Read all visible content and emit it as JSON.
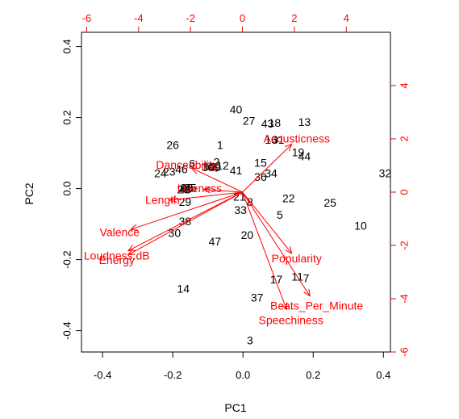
{
  "chart_data": {
    "type": "biplot",
    "xlabel": "PC1",
    "ylabel": "PC2",
    "primary_axes": {
      "x": {
        "range": [
          -0.46,
          0.42
        ],
        "ticks": [
          -0.4,
          -0.2,
          0.0,
          0.2,
          0.4
        ],
        "tick_labels": [
          "-0.4",
          "-0.2",
          "0.0",
          "0.2",
          "0.4"
        ]
      },
      "y": {
        "range": [
          -0.46,
          0.44
        ],
        "ticks": [
          -0.4,
          -0.2,
          0.0,
          0.2,
          0.4
        ],
        "tick_labels": [
          "-0.4",
          "-0.2",
          "0.0",
          "0.2",
          "0.4"
        ]
      }
    },
    "secondary_axes": {
      "color": "#ff0000",
      "x": {
        "range": [
          -6.2,
          5.7
        ],
        "ticks": [
          -6,
          -4,
          -2,
          0,
          2,
          4
        ],
        "tick_labels": [
          "-6",
          "-4",
          "-2",
          "0",
          "2",
          "4"
        ]
      },
      "y": {
        "range": [
          -6.0,
          6.0
        ],
        "ticks": [
          -6,
          -4,
          -2,
          0,
          2,
          4
        ],
        "tick_labels": [
          "-6",
          "-4",
          "-2",
          "0",
          "2",
          "4"
        ]
      }
    },
    "observations": [
      {
        "label": "1",
        "x": -0.065,
        "y": 0.12
      },
      {
        "label": "2",
        "x": -0.075,
        "y": 0.072
      },
      {
        "label": "3",
        "x": 0.02,
        "y": -0.43
      },
      {
        "label": "4",
        "x": -0.08,
        "y": 0.055
      },
      {
        "label": "5",
        "x": 0.105,
        "y": -0.077
      },
      {
        "label": "6",
        "x": -0.145,
        "y": 0.068
      },
      {
        "label": "7",
        "x": 0.18,
        "y": -0.255
      },
      {
        "label": "8",
        "x": 0.02,
        "y": -0.04
      },
      {
        "label": "9",
        "x": -0.17,
        "y": 0.0
      },
      {
        "label": "10",
        "x": 0.335,
        "y": -0.107
      },
      {
        "label": "11",
        "x": 0.155,
        "y": -0.25
      },
      {
        "label": "12",
        "x": -0.058,
        "y": 0.062
      },
      {
        "label": "13",
        "x": 0.175,
        "y": 0.185
      },
      {
        "label": "14",
        "x": -0.17,
        "y": -0.285
      },
      {
        "label": "15",
        "x": 0.05,
        "y": 0.07
      },
      {
        "label": "16",
        "x": 0.08,
        "y": 0.135
      },
      {
        "label": "17",
        "x": 0.095,
        "y": -0.258
      },
      {
        "label": "18",
        "x": 0.09,
        "y": 0.183
      },
      {
        "label": "19",
        "x": 0.157,
        "y": 0.1
      },
      {
        "label": "20",
        "x": 0.012,
        "y": -0.133
      },
      {
        "label": "21",
        "x": -0.01,
        "y": -0.025
      },
      {
        "label": "22",
        "x": 0.13,
        "y": -0.03
      },
      {
        "label": "23",
        "x": -0.21,
        "y": 0.045
      },
      {
        "label": "24",
        "x": -0.235,
        "y": 0.04
      },
      {
        "label": "25",
        "x": 0.248,
        "y": -0.043
      },
      {
        "label": "26",
        "x": -0.2,
        "y": 0.12
      },
      {
        "label": "27",
        "x": 0.017,
        "y": 0.188
      },
      {
        "label": "28",
        "x": -0.17,
        "y": -0.005
      },
      {
        "label": "29",
        "x": -0.165,
        "y": -0.04
      },
      {
        "label": "30",
        "x": -0.195,
        "y": -0.128
      },
      {
        "label": "31",
        "x": 0.1,
        "y": 0.135
      },
      {
        "label": "32",
        "x": 0.405,
        "y": 0.04
      },
      {
        "label": "33",
        "x": -0.007,
        "y": -0.063
      },
      {
        "label": "34",
        "x": 0.08,
        "y": 0.04
      },
      {
        "label": "35",
        "x": -0.15,
        "y": 0.0
      },
      {
        "label": "36",
        "x": 0.05,
        "y": 0.03
      },
      {
        "label": "37",
        "x": 0.04,
        "y": -0.31
      },
      {
        "label": "38",
        "x": -0.165,
        "y": -0.095
      },
      {
        "label": "39",
        "x": -0.1,
        "y": 0.058
      },
      {
        "label": "40",
        "x": -0.02,
        "y": 0.22
      },
      {
        "label": "41",
        "x": -0.02,
        "y": 0.048
      },
      {
        "label": "42",
        "x": -0.16,
        "y": 0.0
      },
      {
        "label": "43",
        "x": 0.07,
        "y": 0.18
      },
      {
        "label": "44",
        "x": 0.175,
        "y": 0.088
      },
      {
        "label": "45",
        "x": -0.16,
        "y": 0.0
      },
      {
        "label": "46",
        "x": -0.175,
        "y": 0.052
      },
      {
        "label": "47",
        "x": -0.08,
        "y": -0.152
      },
      {
        "label": "48",
        "x": -0.165,
        "y": -0.005
      },
      {
        "label": "49",
        "x": -0.08,
        "y": 0.058
      },
      {
        "label": "50",
        "x": -0.095,
        "y": 0.06
      }
    ],
    "loadings": [
      {
        "name": "Acousticness",
        "x": 1.9,
        "y": 1.8
      },
      {
        "name": "Danceability",
        "x": -1.95,
        "y": 0.9
      },
      {
        "name": "Liveness",
        "x": -1.5,
        "y": 0.1
      },
      {
        "name": "Length",
        "x": -2.8,
        "y": -0.3
      },
      {
        "name": "Valence",
        "x": -4.3,
        "y": -1.4
      },
      {
        "name": "Loudness.dB",
        "x": -4.4,
        "y": -2.2
      },
      {
        "name": "Energy",
        "x": -4.4,
        "y": -2.35
      },
      {
        "name": "Popularity",
        "x": 1.9,
        "y": -2.3
      },
      {
        "name": "Beats_Per_Minute",
        "x": 2.6,
        "y": -3.9
      },
      {
        "name": "Speechiness",
        "x": 1.7,
        "y": -4.4
      }
    ],
    "loading_label_text": {
      "Acousticness": "Acousticness",
      "Danceability": "Danceability",
      "Liveness": "Liveness",
      "Length": "Length",
      "Valence": "Valence",
      "Loudness.dB": "Loudness.dB",
      "Energy": "Energy",
      "Popularity": "Popularity",
      "Beats_Per_Minute": "Beats_Per_Minute",
      "Speechiness": "Speechiness"
    },
    "arrow_color": "#ff0000",
    "label_color": "#000000"
  }
}
